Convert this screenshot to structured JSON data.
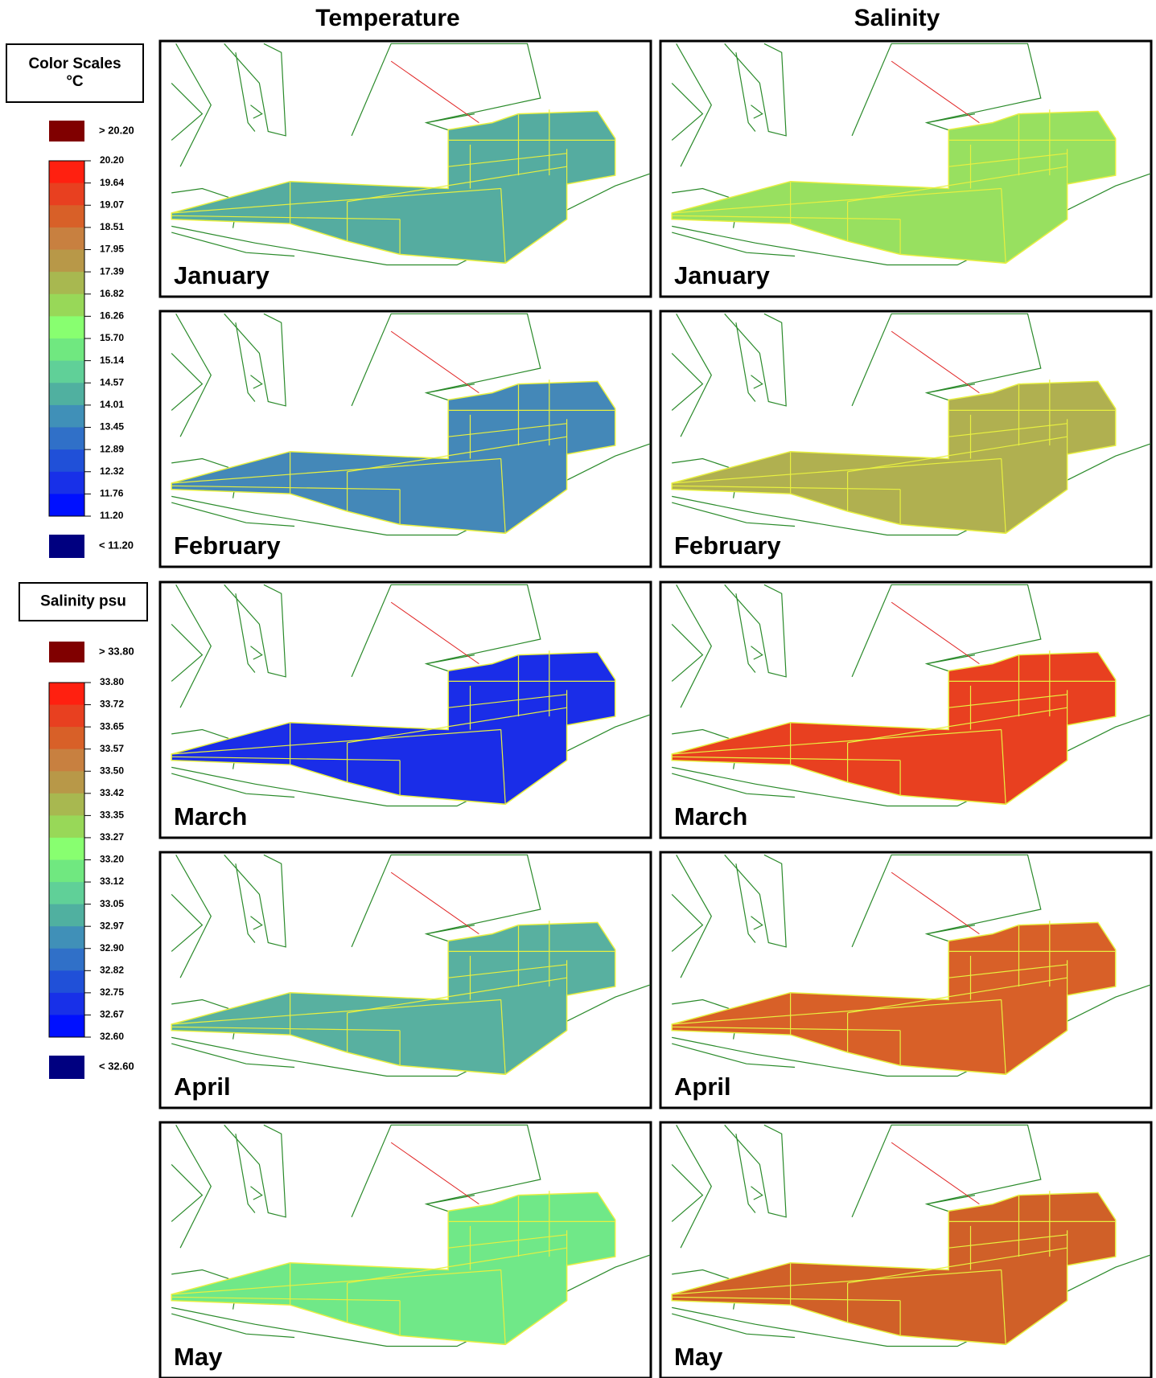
{
  "headers": [
    "Temperature",
    "Salinity"
  ],
  "legends": [
    {
      "title": [
        "Color Scales",
        "°C"
      ],
      "over": {
        "label": "> 20.20",
        "color": "#800000"
      },
      "scale_labels": [
        "20.20",
        "19.64",
        "19.07",
        "18.51",
        "17.95",
        "17.39",
        "16.82",
        "16.26",
        "15.70",
        "15.14",
        "14.57",
        "14.01",
        "13.45",
        "12.89",
        "12.32",
        "11.76",
        "11.20"
      ],
      "scale_colors": [
        "#ff2010",
        "#e84020",
        "#d86028",
        "#c88040",
        "#b89848",
        "#a8b850",
        "#98d858",
        "#88ff70",
        "#70e880",
        "#60d098",
        "#50b0a0",
        "#4090b8",
        "#3070c8",
        "#2050d8",
        "#1830e8",
        "#0010ff"
      ],
      "under": {
        "label": "< 11.20",
        "color": "#000080"
      }
    },
    {
      "title": [
        "Salinity psu"
      ],
      "over": {
        "label": "> 33.80",
        "color": "#800000"
      },
      "scale_labels": [
        "33.80",
        "33.72",
        "33.65",
        "33.57",
        "33.50",
        "33.42",
        "33.35",
        "33.27",
        "33.20",
        "33.12",
        "33.05",
        "32.97",
        "32.90",
        "32.82",
        "32.75",
        "32.67",
        "32.60"
      ],
      "scale_colors": [
        "#ff2010",
        "#e84020",
        "#d86028",
        "#c88040",
        "#b89848",
        "#a8b850",
        "#98d858",
        "#88ff70",
        "#70e880",
        "#60d098",
        "#50b0a0",
        "#4090b8",
        "#3070c8",
        "#2050d8",
        "#1830e8",
        "#0010ff"
      ],
      "under": {
        "label": "< 32.60",
        "color": "#000080"
      }
    }
  ],
  "panels": [
    {
      "month": "January",
      "temperature_color": "#55aca0",
      "salinity_color": "#98e060"
    },
    {
      "month": "February",
      "temperature_color": "#4488b8",
      "salinity_color": "#b0b050"
    },
    {
      "month": "March",
      "temperature_color": "#1a2de8",
      "salinity_color": "#e84020"
    },
    {
      "month": "April",
      "temperature_color": "#58b0a0",
      "salinity_color": "#d86028"
    },
    {
      "month": "May",
      "temperature_color": "#70e888",
      "salinity_color": "#d06028"
    }
  ]
}
